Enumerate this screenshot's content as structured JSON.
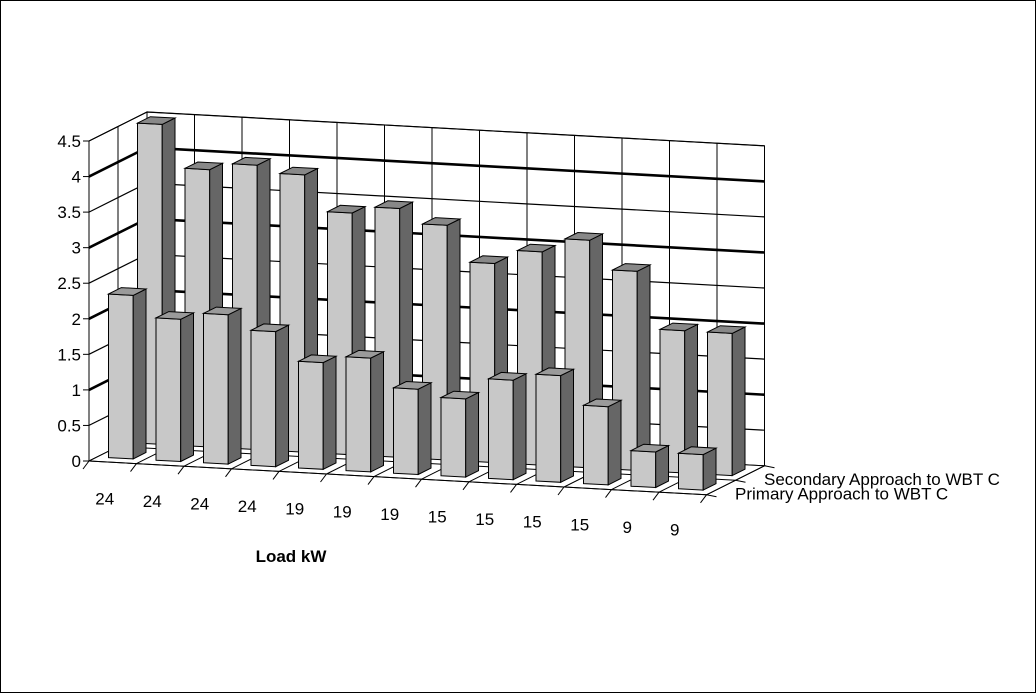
{
  "chart_data": {
    "type": "bar",
    "categories": [
      "24",
      "24",
      "24",
      "24",
      "19",
      "19",
      "19",
      "15",
      "15",
      "15",
      "15",
      "9",
      "9"
    ],
    "series": [
      {
        "name": "Primary Approach to WBT C",
        "values": [
          2.3,
          2.0,
          2.1,
          1.9,
          1.5,
          1.6,
          1.2,
          1.1,
          1.4,
          1.5,
          1.1,
          0.5,
          0.5
        ]
      },
      {
        "name": "Secondary Approach to WBT C",
        "values": [
          4.5,
          3.9,
          4.0,
          3.9,
          3.4,
          3.5,
          3.3,
          2.8,
          3.0,
          3.2,
          2.8,
          2.0,
          2.0
        ]
      }
    ],
    "xlabel": "Load  kW",
    "ylabel": "",
    "ylim": [
      0,
      4.5
    ],
    "yticks": [
      "0",
      "0.5",
      "1",
      "1.5",
      "2",
      "2.5",
      "3",
      "3.5",
      "4",
      "4.5"
    ],
    "grid": true,
    "colors": {
      "front_bar": "#c8c8c8",
      "back_bar": "#666666",
      "gridline": "#000000"
    }
  }
}
